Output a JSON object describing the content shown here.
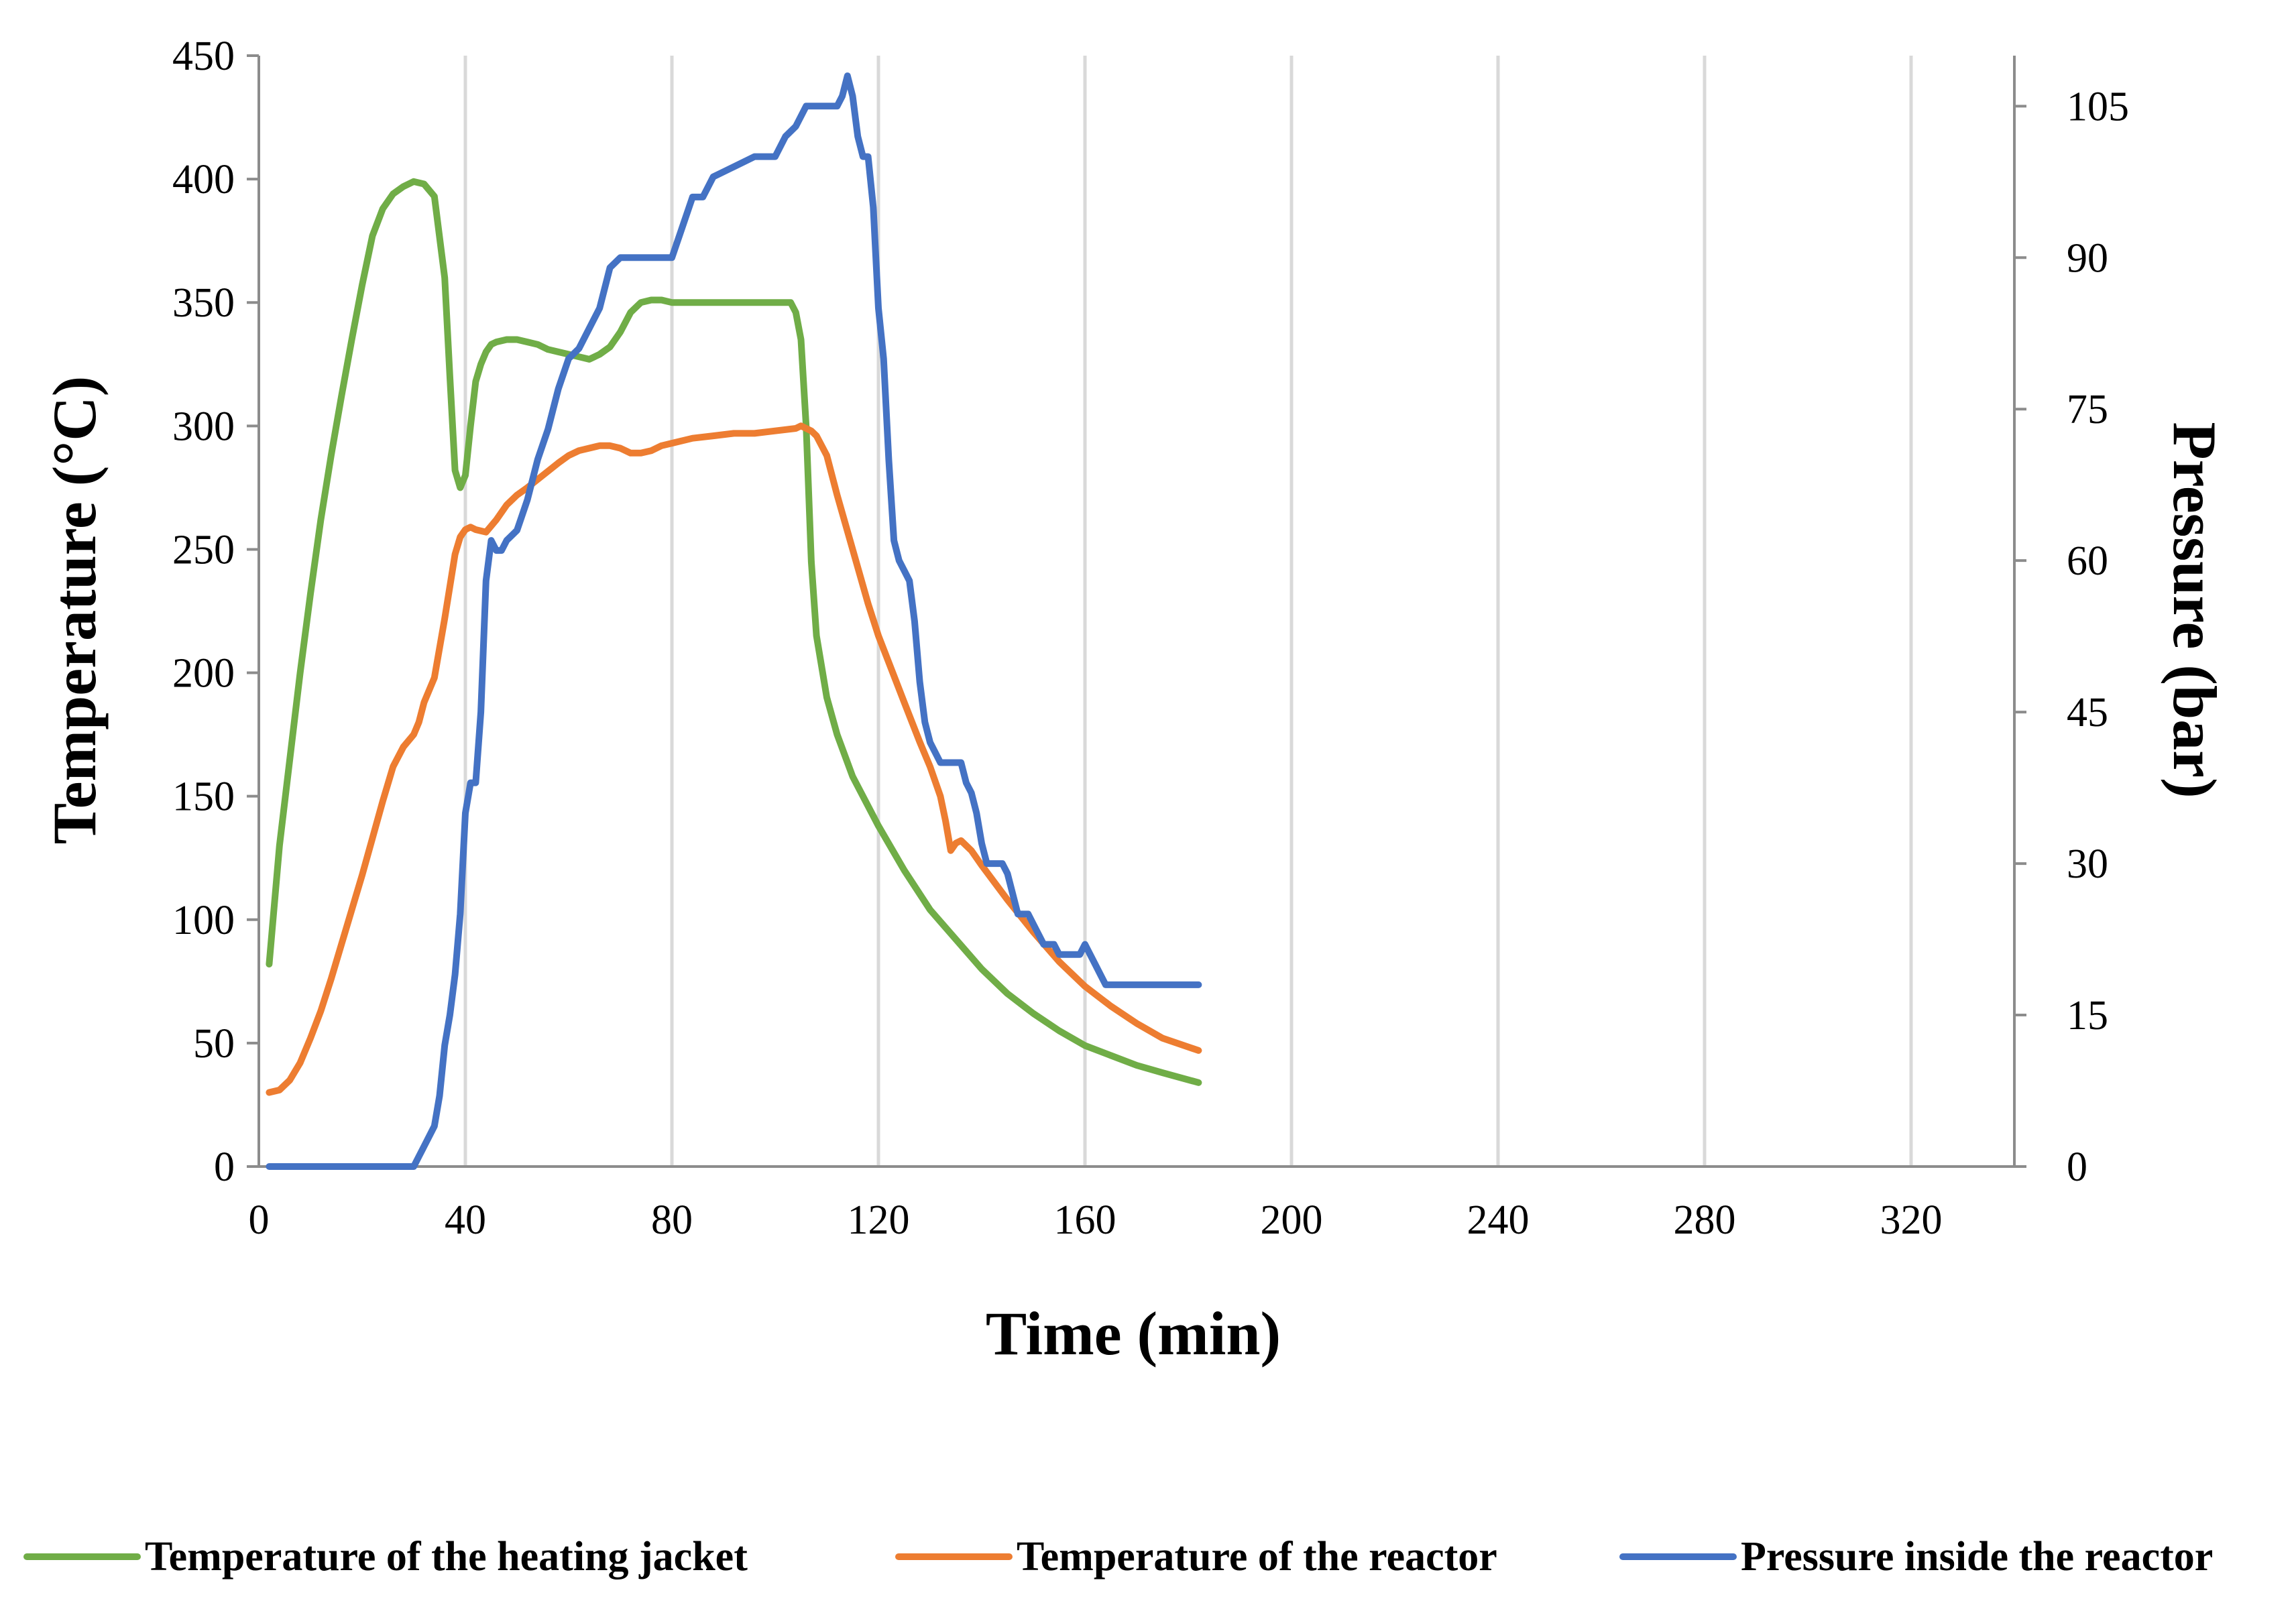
{
  "chart_data": {
    "type": "line",
    "xlabel": "Time (min)",
    "ylabel": "Temperature (°C)",
    "y2label": "Pressure (bar)",
    "xlim": [
      0,
      340
    ],
    "ylim": [
      0,
      450
    ],
    "y2lim": [
      0,
      110
    ],
    "xticks": [
      0,
      40,
      80,
      120,
      160,
      200,
      240,
      280,
      320
    ],
    "yticks": [
      0,
      50,
      100,
      150,
      200,
      250,
      300,
      350,
      400,
      450
    ],
    "y2ticks": [
      0,
      15,
      30,
      45,
      60,
      75,
      90,
      105
    ],
    "grid": "vertical",
    "legend_position": "bottom",
    "series": [
      {
        "name": "Temperature of the heating jacket",
        "axis": "left",
        "color": "#70ad47",
        "x": [
          2,
          4,
          6,
          8,
          10,
          12,
          14,
          16,
          18,
          20,
          22,
          24,
          26,
          28,
          30,
          32,
          34,
          36,
          37,
          38,
          39,
          40,
          41,
          42,
          43,
          44,
          45,
          46,
          48,
          50,
          52,
          54,
          56,
          58,
          60,
          62,
          64,
          66,
          68,
          70,
          72,
          74,
          76,
          78,
          80,
          84,
          90,
          96,
          100,
          103,
          104,
          105,
          106,
          107,
          108,
          110,
          112,
          115,
          120,
          125,
          130,
          135,
          140,
          145,
          150,
          155,
          160,
          165,
          170,
          175,
          182
        ],
        "values": [
          82,
          130,
          165,
          200,
          232,
          262,
          288,
          312,
          335,
          357,
          377,
          388,
          394,
          397,
          399,
          398,
          393,
          360,
          320,
          282,
          275,
          280,
          300,
          318,
          325,
          330,
          333,
          334,
          335,
          335,
          334,
          333,
          331,
          330,
          329,
          328,
          327,
          329,
          332,
          338,
          346,
          350,
          351,
          351,
          350,
          350,
          350,
          350,
          350,
          350,
          346,
          335,
          300,
          245,
          215,
          190,
          175,
          158,
          138,
          120,
          104,
          92,
          80,
          70,
          62,
          55,
          49,
          45,
          41,
          38,
          34
        ]
      },
      {
        "name": "Temperature of the reactor",
        "axis": "left",
        "color": "#ed7d31",
        "x": [
          2,
          4,
          6,
          8,
          10,
          12,
          14,
          16,
          18,
          20,
          22,
          24,
          26,
          28,
          30,
          31,
          32,
          34,
          35,
          36,
          37,
          38,
          39,
          40,
          41,
          42,
          44,
          46,
          48,
          50,
          52,
          55,
          58,
          60,
          62,
          64,
          66,
          68,
          70,
          72,
          74,
          76,
          78,
          80,
          84,
          88,
          92,
          96,
          100,
          104,
          105,
          106,
          107,
          108,
          110,
          112,
          115,
          118,
          120,
          125,
          128,
          130,
          132,
          133,
          134,
          135,
          136,
          138,
          140,
          145,
          150,
          155,
          160,
          165,
          170,
          175,
          182
        ],
        "values": [
          30,
          31,
          35,
          42,
          52,
          63,
          76,
          90,
          104,
          118,
          133,
          148,
          162,
          170,
          175,
          180,
          188,
          198,
          210,
          222,
          235,
          248,
          255,
          258,
          259,
          258,
          257,
          262,
          268,
          272,
          275,
          280,
          285,
          288,
          290,
          291,
          292,
          292,
          291,
          289,
          289,
          290,
          292,
          293,
          295,
          296,
          297,
          297,
          298,
          299,
          300,
          299,
          298,
          296,
          288,
          272,
          250,
          228,
          215,
          188,
          172,
          162,
          150,
          140,
          128,
          131,
          132,
          128,
          122,
          108,
          95,
          83,
          73,
          65,
          58,
          52,
          47
        ]
      },
      {
        "name": "Pressure inside the reactor",
        "axis": "right",
        "color": "#4472c4",
        "x": [
          2,
          10,
          20,
          28,
          30,
          31,
          32,
          33,
          34,
          35,
          36,
          37,
          38,
          39,
          40,
          41,
          42,
          43,
          44,
          45,
          46,
          47,
          48,
          50,
          52,
          54,
          56,
          58,
          60,
          62,
          64,
          66,
          67,
          68,
          70,
          72,
          74,
          76,
          78,
          80,
          82,
          84,
          86,
          88,
          92,
          96,
          98,
          100,
          102,
          104,
          106,
          108,
          110,
          111,
          112,
          113,
          114,
          115,
          116,
          117,
          118,
          119,
          120,
          121,
          122,
          123,
          124,
          125,
          126,
          127,
          128,
          129,
          130,
          131,
          132,
          133,
          134,
          135,
          136,
          137,
          138,
          139,
          140,
          141,
          142,
          143,
          144,
          145,
          146,
          147,
          148,
          149,
          150,
          151,
          152,
          153,
          154,
          155,
          156,
          157,
          158,
          159,
          160,
          161,
          162,
          163,
          164,
          165,
          166,
          170,
          175,
          182
        ],
        "values": [
          0,
          0,
          0,
          0,
          0,
          1,
          2,
          3,
          4,
          7,
          12,
          15,
          19,
          25,
          35,
          38,
          38,
          45,
          58,
          62,
          61,
          61,
          62,
          63,
          66,
          70,
          73,
          77,
          80,
          81,
          83,
          85,
          87,
          89,
          90,
          90,
          90,
          90,
          90,
          90,
          93,
          96,
          96,
          98,
          99,
          100,
          100,
          100,
          102,
          103,
          105,
          105,
          105,
          105,
          105,
          106,
          108,
          106,
          102,
          100,
          100,
          95,
          85,
          80,
          70,
          62,
          60,
          59,
          58,
          54,
          48,
          44,
          42,
          41,
          40,
          40,
          40,
          40,
          40,
          38,
          37,
          35,
          32,
          30,
          30,
          30,
          30,
          29,
          27,
          25,
          25,
          25,
          24,
          23,
          22,
          22,
          22,
          21,
          21,
          21,
          21,
          21,
          22,
          21,
          20,
          19,
          18,
          18,
          18,
          18,
          18,
          18
        ]
      }
    ]
  }
}
